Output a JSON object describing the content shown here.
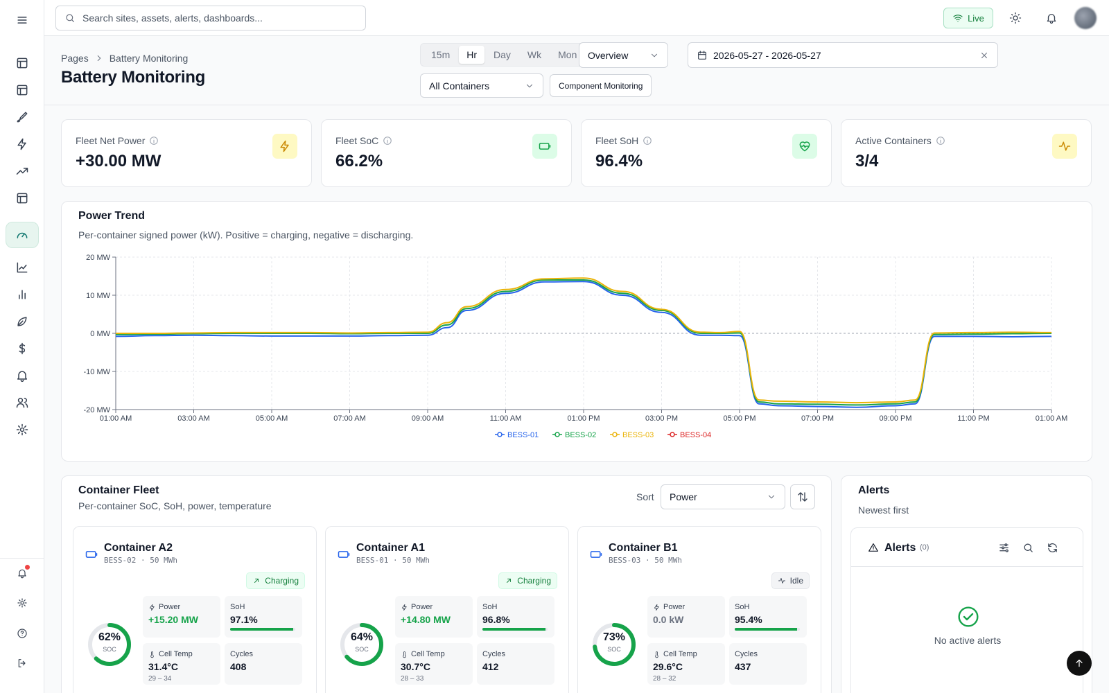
{
  "topbar": {
    "search_placeholder": "Search sites, assets, alerts, dashboards...",
    "live_label": "Live"
  },
  "breadcrumb": {
    "root": "Pages",
    "current": "Battery Monitoring"
  },
  "page_title": "Battery Monitoring",
  "time_ranges": [
    "15m",
    "Hr",
    "Day",
    "Wk",
    "Mon"
  ],
  "time_range_active": "Hr",
  "view_select": "Overview",
  "date_range": "2026-05-27 - 2026-05-27",
  "container_select": "All Containers",
  "component_button": "Component Monitoring",
  "kpis": [
    {
      "label": "Fleet Net Power",
      "value": "+30.00 MW",
      "icon": "bolt-icon"
    },
    {
      "label": "Fleet SoC",
      "value": "66.2%",
      "icon": "battery-icon"
    },
    {
      "label": "Fleet SoH",
      "value": "96.4%",
      "icon": "heart-pulse-icon"
    },
    {
      "label": "Active Containers",
      "value": "3/4",
      "icon": "activity-icon"
    }
  ],
  "power_trend": {
    "title": "Power Trend",
    "subtitle": "Per-container signed power (kW). Positive = charging, negative = discharging."
  },
  "chart_data": {
    "type": "line",
    "title": "Power Trend",
    "ylabel": "",
    "xlabel": "",
    "ylim": [
      -20,
      20
    ],
    "y_ticks": [
      "20 MW",
      "10 MW",
      "0 MW",
      "-10 MW",
      "-20 MW"
    ],
    "x_ticks": [
      "01:00 AM",
      "03:00 AM",
      "05:00 AM",
      "07:00 AM",
      "09:00 AM",
      "11:00 AM",
      "01:00 PM",
      "03:00 PM",
      "05:00 PM",
      "07:00 PM",
      "09:00 PM",
      "11:00 PM",
      "01:00 AM"
    ],
    "x_hours": [
      1,
      2,
      3,
      4,
      5,
      6,
      7,
      8,
      9,
      9.5,
      10,
      11,
      12,
      13,
      14,
      15,
      16,
      16.5,
      17,
      17.5,
      18,
      19,
      20,
      21,
      21.5,
      22,
      23,
      24,
      25
    ],
    "grid": true,
    "legend_position": "bottom",
    "series": [
      {
        "name": "BESS-01",
        "color": "#2563eb",
        "values": [
          -0.8,
          -0.6,
          -0.5,
          -0.6,
          -0.7,
          -0.7,
          -0.7,
          -0.6,
          -0.5,
          1.5,
          6.0,
          10.5,
          13.5,
          13.6,
          10.0,
          5.5,
          -0.5,
          -0.5,
          -0.6,
          -18.5,
          -19.0,
          -19.2,
          -19.4,
          -19.0,
          -18.5,
          -0.8,
          -0.8,
          -0.9,
          -0.8
        ]
      },
      {
        "name": "BESS-02",
        "color": "#16a34a",
        "values": [
          -0.3,
          -0.2,
          -0.1,
          0.0,
          0.0,
          0.0,
          -0.1,
          0.0,
          0.0,
          2.2,
          6.5,
          11.0,
          14.0,
          14.0,
          10.5,
          6.0,
          0.0,
          0.0,
          0.1,
          -18.0,
          -18.5,
          -18.6,
          -18.8,
          -18.5,
          -18.0,
          -0.3,
          -0.2,
          -0.1,
          0.0
        ]
      },
      {
        "name": "BESS-03",
        "color": "#eab308",
        "values": [
          0.0,
          0.0,
          0.1,
          0.2,
          0.2,
          0.2,
          0.1,
          0.2,
          0.3,
          2.8,
          7.0,
          11.5,
          14.3,
          14.5,
          11.0,
          6.3,
          0.3,
          0.2,
          0.5,
          -17.5,
          -17.8,
          -18.0,
          -18.2,
          -18.0,
          -17.5,
          0.1,
          0.2,
          0.3,
          0.2
        ]
      },
      {
        "name": "BESS-04",
        "color": "#dc2626",
        "values": []
      }
    ]
  },
  "fleet": {
    "title": "Container Fleet",
    "subtitle": "Per-container SoC, SoH, power, temperature",
    "sort_label": "Sort",
    "sort_value": "Power",
    "containers": [
      {
        "title": "Container A2",
        "sub": "BESS-02 · 50 MWh",
        "status": "Charging",
        "soc": 62,
        "soc_text": "62%",
        "soc_label": "SOC",
        "power_label": "Power",
        "power": "+15.20 MW",
        "soh_label": "SoH",
        "soh": "97.1%",
        "soh_value": 97.1,
        "temp_label": "Cell Temp",
        "temp": "31.4°C",
        "temp_range": "29 – 34",
        "cycles_label": "Cycles",
        "cycles": "408"
      },
      {
        "title": "Container A1",
        "sub": "BESS-01 · 50 MWh",
        "status": "Charging",
        "soc": 64,
        "soc_text": "64%",
        "soc_label": "SOC",
        "power_label": "Power",
        "power": "+14.80 MW",
        "soh_label": "SoH",
        "soh": "96.8%",
        "soh_value": 96.8,
        "temp_label": "Cell Temp",
        "temp": "30.7°C",
        "temp_range": "28 – 33",
        "cycles_label": "Cycles",
        "cycles": "412"
      },
      {
        "title": "Container B1",
        "sub": "BESS-03 · 50 MWh",
        "status": "Idle",
        "soc": 73,
        "soc_text": "73%",
        "soc_label": "SOC",
        "power_label": "Power",
        "power": "0.0 kW",
        "soh_label": "SoH",
        "soh": "95.4%",
        "soh_value": 95.4,
        "temp_label": "Cell Temp",
        "temp": "29.6°C",
        "temp_range": "28 – 32",
        "cycles_label": "Cycles",
        "cycles": "437"
      }
    ]
  },
  "alerts": {
    "title": "Alerts",
    "subtitle": "Newest first",
    "panel_title": "Alerts",
    "count": "(0)",
    "empty_text": "No active alerts"
  },
  "colors": {
    "accent": "#16a34a",
    "brand": "#0f766e",
    "charging": "#16a34a"
  }
}
